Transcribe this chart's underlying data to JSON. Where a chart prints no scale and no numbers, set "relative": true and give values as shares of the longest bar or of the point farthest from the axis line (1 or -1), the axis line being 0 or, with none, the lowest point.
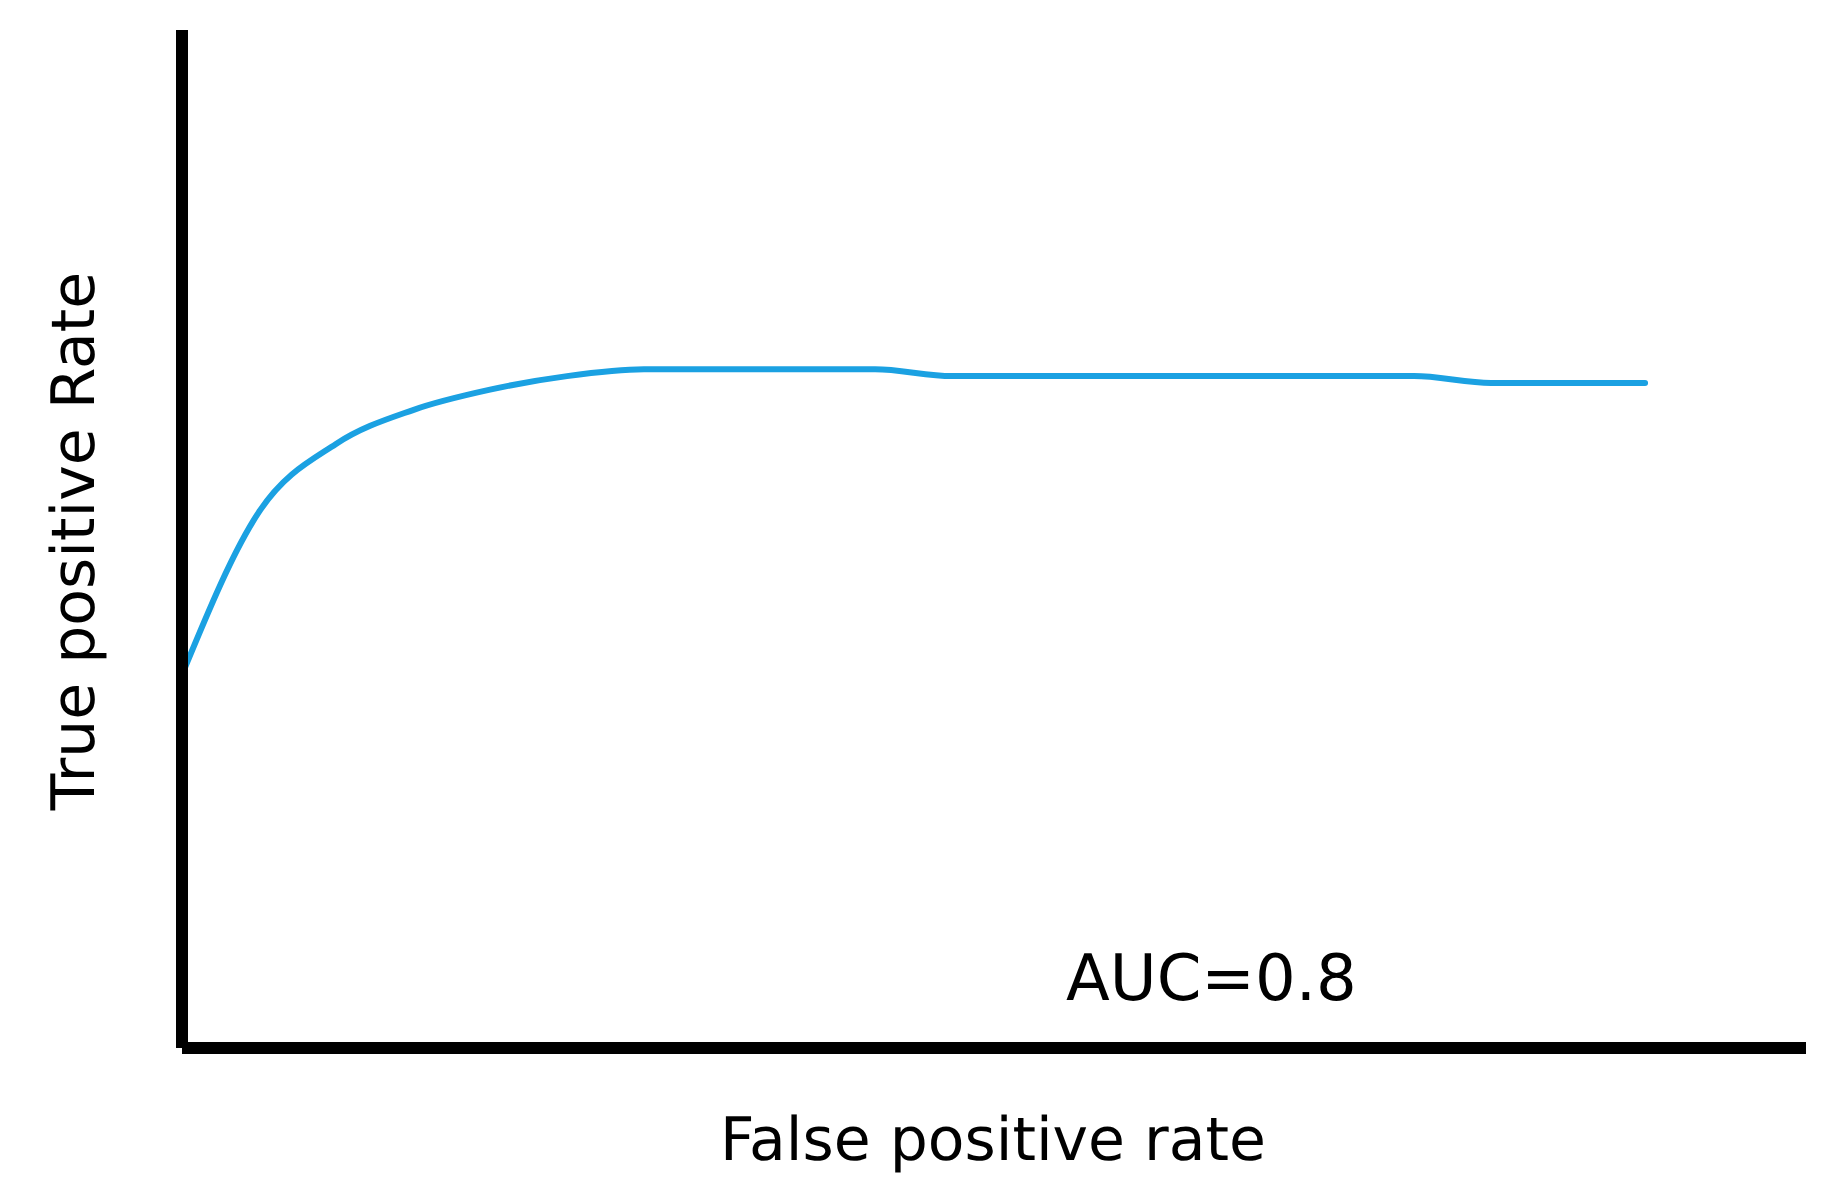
{
  "chart_data": {
    "type": "line",
    "relative": true,
    "xlabel": "False positive rate",
    "ylabel": "True positive Rate",
    "annotations": [
      "AUC=0.8"
    ],
    "categories": [
      null,
      null,
      null,
      null,
      null,
      null,
      null,
      null,
      null,
      null,
      null,
      null,
      null,
      null,
      null,
      null,
      null,
      null,
      null,
      null
    ],
    "series": [
      {
        "color": "#1ba1e2",
        "values": [
          0.55,
          0.79,
          0.89,
          0.94,
          0.97,
          0.99,
          1.0,
          1.0,
          1.0,
          1.0,
          0.99,
          0.99,
          0.99,
          0.99,
          0.99,
          0.99,
          0.99,
          0.98,
          0.98,
          0.98
        ]
      }
    ],
    "grid": false,
    "marker": "none",
    "line_style": "solid"
  }
}
